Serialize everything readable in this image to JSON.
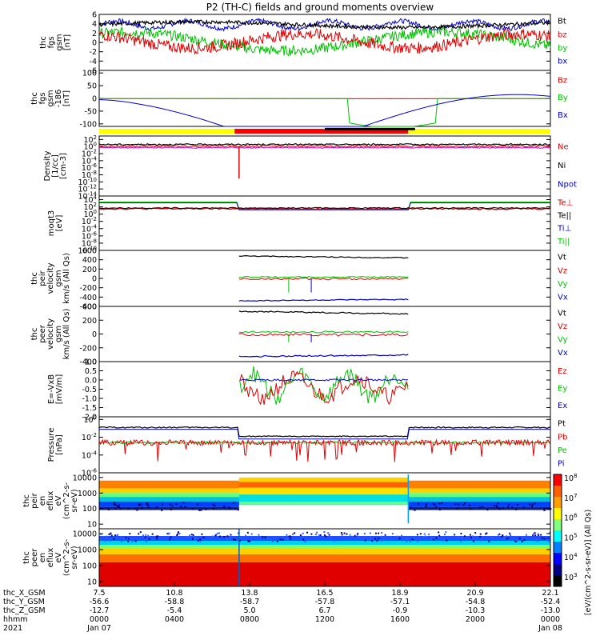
{
  "title": "P2 (TH-C) fields and ground moments overview",
  "panels": [
    {
      "id": "p1",
      "ylabel": [
        "thc",
        "fgs",
        "gsm",
        "[nT]"
      ],
      "ticks": [
        "6",
        "4",
        "2",
        "0",
        "-2",
        "-4",
        "-6"
      ],
      "ylim": [
        -6,
        6
      ],
      "scale": "linear",
      "legend": [
        {
          "text": "Bt",
          "color": "#000000"
        },
        {
          "text": "bz",
          "color": "#e00000"
        },
        {
          "text": "by",
          "color": "#00c000"
        },
        {
          "text": "bx",
          "color": "#0000d0"
        }
      ]
    },
    {
      "id": "p2",
      "ylabel": [
        "thc",
        "fgs",
        "gsm",
        "-186",
        "[nT]"
      ],
      "ticks": [
        "100",
        "50",
        "0",
        "-50",
        "-100"
      ],
      "ylim": [
        -110,
        110
      ],
      "scale": "linear",
      "legend": [
        {
          "text": "Bz",
          "color": "#e00000"
        },
        {
          "text": "By",
          "color": "#00c000"
        },
        {
          "text": "Bx",
          "color": "#0000d0"
        }
      ]
    },
    {
      "id": "p3",
      "ylabel": [
        "Density",
        "[1/cc]",
        "[cm-3]"
      ],
      "ticks": [
        "10^2",
        "10^0",
        "10^-2",
        "10^-4",
        "10^-6",
        "10^-8",
        "10^-10",
        "10^-12",
        "10^-14"
      ],
      "ylim": [
        -14,
        3
      ],
      "scale": "log",
      "legend": [
        {
          "text": "Ne",
          "color": "#e00000"
        },
        {
          "text": "Ni",
          "color": "#000000"
        },
        {
          "text": "Npot",
          "color": "#0000d0"
        }
      ]
    },
    {
      "id": "p4",
      "ylabel": [
        "moqt3",
        "[eV]"
      ],
      "ticks": [
        "10^4",
        "10^2",
        "10^0",
        "10^-2",
        "10^-4",
        "10^-6",
        "10^-8",
        "10^-10"
      ],
      "ylim": [
        -10,
        5
      ],
      "scale": "log",
      "legend": [
        {
          "text": "Te⊥",
          "color": "#e00000"
        },
        {
          "text": "Te||",
          "color": "#000000"
        },
        {
          "text": "Ti⊥",
          "color": "#0000d0"
        },
        {
          "text": "Ti||",
          "color": "#00c000"
        }
      ]
    },
    {
      "id": "p5",
      "ylabel": [
        "thc",
        "peir",
        "velocity",
        "gsm",
        "km/s (All Qs)"
      ],
      "ticks": [
        "600",
        "400",
        "200",
        "0",
        "-200",
        "-400",
        "-600"
      ],
      "ylim": [
        -600,
        600
      ],
      "scale": "linear",
      "legend": [
        {
          "text": "Vt",
          "color": "#000000"
        },
        {
          "text": "Vz",
          "color": "#e00000"
        },
        {
          "text": "Vy",
          "color": "#00c000"
        },
        {
          "text": "Vx",
          "color": "#0000d0"
        }
      ]
    },
    {
      "id": "p6",
      "ylabel": [
        "thc",
        "peer",
        "velocity",
        "gsm",
        "km/s (All Qs)"
      ],
      "ticks": [
        "400",
        "200",
        "0",
        "-200",
        "-400"
      ],
      "ylim": [
        -400,
        400
      ],
      "scale": "linear",
      "legend": [
        {
          "text": "Vt",
          "color": "#000000"
        },
        {
          "text": "Vz",
          "color": "#e00000"
        },
        {
          "text": "Vy",
          "color": "#00c000"
        },
        {
          "text": "Vx",
          "color": "#0000d0"
        }
      ]
    },
    {
      "id": "p7",
      "ylabel": [
        "E=-VxB",
        "[mV/m]"
      ],
      "ticks": [
        "1.0",
        "0.5",
        "0.0",
        "-0.5",
        "-1.0",
        "-1.5",
        "-2.0"
      ],
      "ylim": [
        -2,
        1
      ],
      "scale": "linear",
      "legend": [
        {
          "text": "Ez",
          "color": "#e00000"
        },
        {
          "text": "Ey",
          "color": "#00c000"
        },
        {
          "text": "Ex",
          "color": "#0000d0"
        }
      ]
    },
    {
      "id": "p8",
      "ylabel": [
        "Pressure",
        "[nPa]"
      ],
      "ticks": [
        "10^0",
        "10^-2",
        "10^-4",
        "10^-6"
      ],
      "ylim": [
        -6,
        0.3
      ],
      "scale": "log",
      "legend": [
        {
          "text": "Pt",
          "color": "#000000"
        },
        {
          "text": "Pb",
          "color": "#e00000"
        },
        {
          "text": "Pe",
          "color": "#00c000"
        },
        {
          "text": "Pi",
          "color": "#0000d0"
        }
      ]
    },
    {
      "id": "p9",
      "ylabel": [
        "thc",
        "peir",
        "en",
        "eflux",
        "eV",
        "(cm^2-s-",
        "sr-eV)"
      ],
      "ticks": [
        "10000",
        "1000",
        "100",
        "10"
      ],
      "ylim": [
        0.7,
        4.3
      ],
      "scale": "log"
    },
    {
      "id": "p10",
      "ylabel": [
        "thc",
        "peer",
        "en",
        "eflux",
        "eV",
        "(cm^2-s-",
        "sr-eV)"
      ],
      "ticks": [
        "10000",
        "1000",
        "100",
        "10"
      ],
      "ylim": [
        0.7,
        4.3
      ],
      "scale": "log"
    }
  ],
  "colorbar": {
    "ticks": [
      "10^8",
      "10^7",
      "10^6",
      "10^5",
      "10^4",
      "10^3"
    ],
    "label": "[eV/(cm^2-s-sr-eV)] (All Qs)"
  },
  "mode_bar": [
    {
      "from": 0.0,
      "to": 0.3,
      "color": "#ffff00"
    },
    {
      "from": 0.3,
      "to": 0.685,
      "color": "#ff0000"
    },
    {
      "from": 0.685,
      "to": 1.0,
      "color": "#ffff00"
    }
  ],
  "x_axis": {
    "row_labels": [
      "thc_X_GSM",
      "thc_Y_GSM",
      "thc_Z_GSM",
      "hhmm",
      "2021"
    ],
    "columns": [
      {
        "rows": [
          "7.5",
          "-56.6",
          "-12.7",
          "0000",
          "Jan 07"
        ]
      },
      {
        "rows": [
          "10.8",
          "-58.8",
          "-5.4",
          "0400",
          ""
        ]
      },
      {
        "rows": [
          "13.8",
          "-58.7",
          "5.0",
          "0800",
          ""
        ]
      },
      {
        "rows": [
          "16.5",
          "-57.8",
          "6.7",
          "1200",
          ""
        ]
      },
      {
        "rows": [
          "18.9",
          "-57.1",
          "-0.9",
          "1600",
          ""
        ]
      },
      {
        "rows": [
          "20.9",
          "-54.8",
          "-10.3",
          "2000",
          ""
        ]
      },
      {
        "rows": [
          "22.1",
          "-52.4",
          "-13.0",
          "0000",
          "Jan 08"
        ]
      }
    ]
  },
  "chart_data": {
    "type": "line",
    "title": "P2 (TH-C) fields and ground moments overview",
    "x": [
      "0000",
      "0400",
      "0800",
      "1200",
      "1600",
      "2000",
      "0000"
    ],
    "series_summary": [
      {
        "panel": "fgs gsm [nT]",
        "name": "Bt",
        "approx": "3 to 5"
      },
      {
        "panel": "fgs gsm [nT]",
        "name": "bz",
        "approx": "-2 to 4"
      },
      {
        "panel": "fgs gsm [nT]",
        "name": "by",
        "approx": "-4 to 2"
      },
      {
        "panel": "fgs gsm [nT]",
        "name": "bx",
        "approx": "-4 to 3"
      },
      {
        "panel": "fgs gsm -186 [nT]",
        "name": "Bx",
        "approx": "-5 to -125 to 15"
      },
      {
        "panel": "velocity (peir)",
        "name": "Vt",
        "approx": "480"
      },
      {
        "panel": "velocity (peer)",
        "name": "Vt",
        "approx": "330"
      },
      {
        "panel": "E=-VxB",
        "name": "Ez",
        "approx": "-1.5 to 0.6"
      }
    ]
  }
}
